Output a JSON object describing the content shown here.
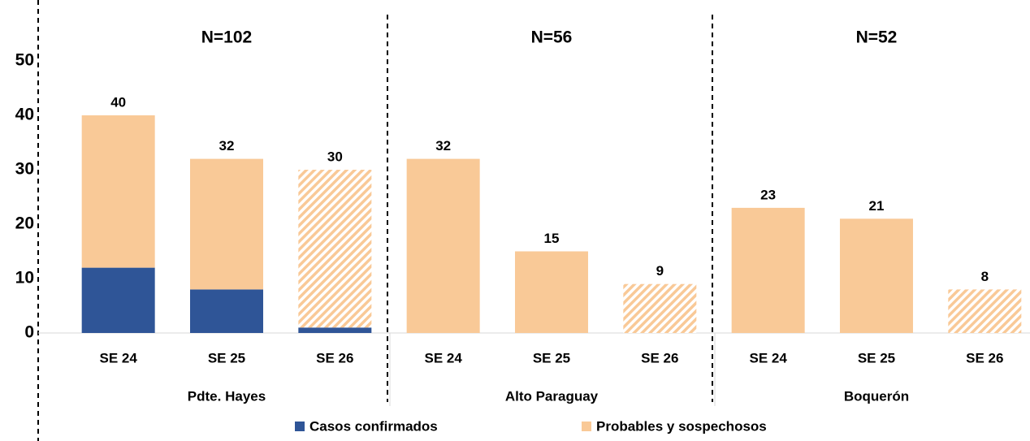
{
  "chart_data": {
    "type": "stacked_bar",
    "groups": [
      {
        "name": "Pdte. Hayes",
        "annotation": "N=102",
        "categories": [
          "SE 24",
          "SE 25",
          "SE 26"
        ]
      },
      {
        "name": "Alto Paraguay",
        "annotation": "N=56",
        "categories": [
          "SE 24",
          "SE 25",
          "SE 26"
        ]
      },
      {
        "name": "Boquerón",
        "annotation": "N=52",
        "categories": [
          "SE 24",
          "SE 25",
          "SE 26"
        ]
      }
    ],
    "series": [
      {
        "name": "Casos confirmados",
        "color": "#2f5597",
        "values": [
          12,
          8,
          1,
          0,
          0,
          0,
          0,
          0,
          0
        ]
      },
      {
        "name": "Probables y sospechosos",
        "color": "#f9c997",
        "values": [
          28,
          24,
          29,
          32,
          15,
          9,
          23,
          21,
          8
        ]
      }
    ],
    "total_labels": [
      "40",
      "32",
      "30",
      "32",
      "15",
      "9",
      "23",
      "21",
      "8"
    ],
    "hatched": [
      false,
      false,
      true,
      false,
      false,
      true,
      false,
      false,
      true
    ],
    "ylim": [
      0,
      50
    ],
    "yticks": [
      0,
      10,
      20,
      30,
      40,
      50
    ],
    "grid": false,
    "legend": "bottom"
  }
}
